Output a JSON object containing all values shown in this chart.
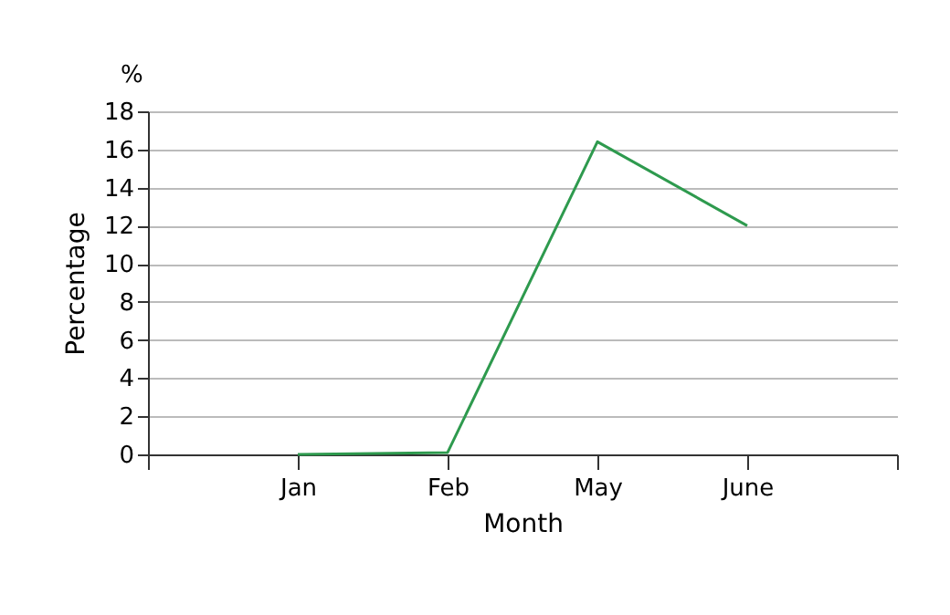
{
  "chart_data": {
    "type": "line",
    "xlabel": "Month",
    "ylabel": "Percentage",
    "annotations": [
      "%"
    ],
    "categories": [
      null,
      "Jan",
      "Feb",
      "May",
      "June",
      null
    ],
    "series": [
      {
        "color": "#2e9a4e",
        "values": [
          null,
          0,
          0.1,
          16.4,
          12,
          null
        ]
      }
    ],
    "ylim": [
      0,
      18
    ],
    "yticks": [
      0,
      2,
      4,
      6,
      8,
      10,
      12,
      14,
      16,
      18
    ],
    "grid": "y",
    "marker": "none",
    "line_style": "solid"
  }
}
